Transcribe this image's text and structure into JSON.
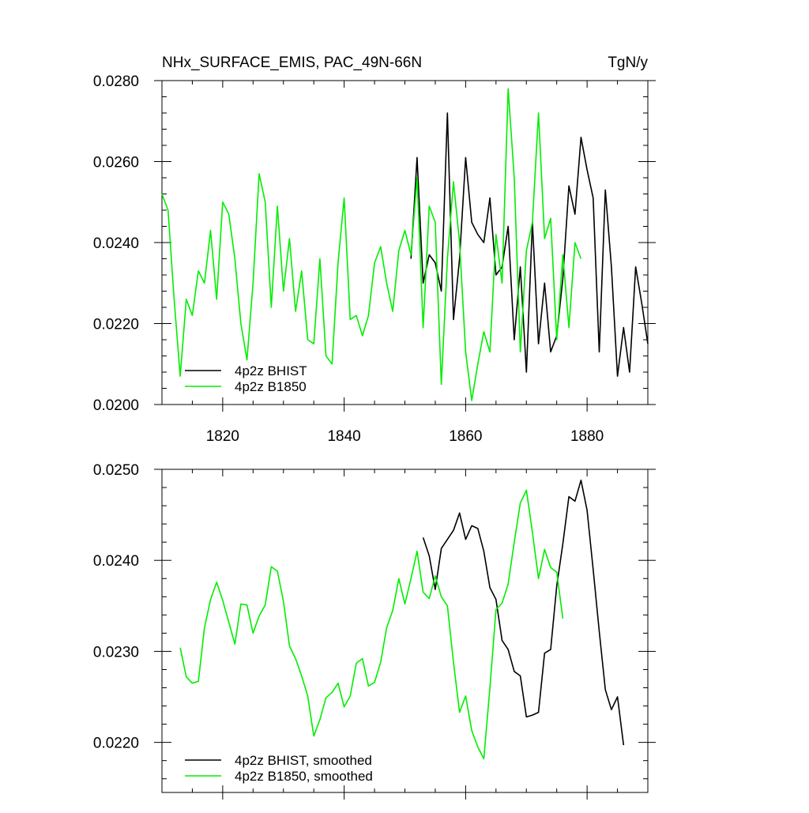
{
  "chart_data": [
    {
      "type": "line",
      "title": "NHx_SURFACE_EMIS, PAC_49N-66N",
      "units": "TgN/y",
      "xlabel": "",
      "ylabel": "",
      "xlim": [
        1810,
        1890
      ],
      "ylim": [
        0.02,
        0.028
      ],
      "yticks": [
        "0.0200",
        "0.0220",
        "0.0240",
        "0.0260",
        "0.0280"
      ],
      "xticks": [
        "1820",
        "1840",
        "1860",
        "1880"
      ],
      "grid": false,
      "legend_position": "bottom-left",
      "series": [
        {
          "name": "4p2z BHIST",
          "color": "#000000",
          "x": [
            1851,
            1852,
            1853,
            1854,
            1855,
            1856,
            1857,
            1858,
            1859,
            1860,
            1861,
            1862,
            1863,
            1864,
            1865,
            1866,
            1867,
            1868,
            1869,
            1870,
            1871,
            1872,
            1873,
            1874,
            1875,
            1876,
            1877,
            1878,
            1879,
            1880,
            1881,
            1882,
            1883,
            1884,
            1885,
            1886,
            1887,
            1888,
            1889,
            1890
          ],
          "y": [
            0.0236,
            0.0261,
            0.023,
            0.0237,
            0.0235,
            0.0228,
            0.0272,
            0.0221,
            0.0236,
            0.0261,
            0.0245,
            0.0242,
            0.024,
            0.0251,
            0.0232,
            0.0234,
            0.0244,
            0.0216,
            0.0234,
            0.0208,
            0.0245,
            0.0215,
            0.023,
            0.0213,
            0.0217,
            0.0231,
            0.0254,
            0.0247,
            0.0266,
            0.0258,
            0.0251,
            0.0213,
            0.0253,
            0.0234,
            0.0207,
            0.0219,
            0.0208,
            0.0234,
            0.0225,
            0.0215
          ]
        },
        {
          "name": "4p2z B1850",
          "color": "#00ee00",
          "x": [
            1810,
            1811,
            1812,
            1813,
            1814,
            1815,
            1816,
            1817,
            1818,
            1819,
            1820,
            1821,
            1822,
            1823,
            1824,
            1825,
            1826,
            1827,
            1828,
            1829,
            1830,
            1831,
            1832,
            1833,
            1834,
            1835,
            1836,
            1837,
            1838,
            1839,
            1840,
            1841,
            1842,
            1843,
            1844,
            1845,
            1846,
            1847,
            1848,
            1849,
            1850,
            1851,
            1852,
            1853,
            1854,
            1855,
            1856,
            1857,
            1858,
            1859,
            1860,
            1861,
            1862,
            1863,
            1864,
            1865,
            1866,
            1867,
            1868,
            1869,
            1870,
            1871,
            1872,
            1873,
            1874,
            1875,
            1876,
            1877,
            1878,
            1879
          ],
          "y": [
            0.0252,
            0.0248,
            0.0226,
            0.0207,
            0.0226,
            0.0222,
            0.0233,
            0.023,
            0.0243,
            0.0226,
            0.025,
            0.0247,
            0.0236,
            0.022,
            0.0211,
            0.023,
            0.0257,
            0.025,
            0.0224,
            0.0249,
            0.0228,
            0.0241,
            0.0223,
            0.0233,
            0.0216,
            0.0215,
            0.0236,
            0.0212,
            0.021,
            0.0235,
            0.0251,
            0.0221,
            0.0222,
            0.0217,
            0.0222,
            0.0235,
            0.0239,
            0.023,
            0.0223,
            0.0238,
            0.0243,
            0.0237,
            0.0256,
            0.0219,
            0.0249,
            0.0245,
            0.0205,
            0.0236,
            0.0255,
            0.024,
            0.0213,
            0.0201,
            0.021,
            0.0218,
            0.0213,
            0.0242,
            0.023,
            0.0278,
            0.0256,
            0.0213,
            0.0238,
            0.0245,
            0.0272,
            0.0241,
            0.0246,
            0.0216,
            0.0237,
            0.0219,
            0.024,
            0.0236
          ]
        }
      ]
    },
    {
      "type": "line",
      "title": "",
      "xlabel": "",
      "ylabel": "",
      "xlim": [
        1810,
        1890
      ],
      "ylim": [
        0.02145,
        0.025
      ],
      "yticks": [
        "0.0220",
        "0.0230",
        "0.0240",
        "0.0250"
      ],
      "grid": false,
      "legend_position": "bottom-left",
      "series": [
        {
          "name": "4p2z BHIST, smoothed",
          "color": "#000000",
          "x": [
            1853,
            1854,
            1855,
            1856,
            1857,
            1858,
            1859,
            1860,
            1861,
            1862,
            1863,
            1864,
            1865,
            1866,
            1867,
            1868,
            1869,
            1870,
            1871,
            1872,
            1873,
            1874,
            1875,
            1876,
            1877,
            1878,
            1879,
            1880,
            1881,
            1882,
            1883,
            1884,
            1885,
            1886,
            1887
          ],
          "y": [
            0.02425,
            0.02405,
            0.02368,
            0.02413,
            0.02423,
            0.02433,
            0.02452,
            0.02423,
            0.02438,
            0.02435,
            0.0241,
            0.0237,
            0.02357,
            0.02312,
            0.02302,
            0.02278,
            0.02273,
            0.02228,
            0.0223,
            0.02233,
            0.02298,
            0.02302,
            0.02372,
            0.02418,
            0.0247,
            0.02465,
            0.02488,
            0.02455,
            0.0239,
            0.02322,
            0.02258,
            0.02236,
            0.0225,
            0.02197,
            null
          ]
        },
        {
          "name": "4p2z B1850, smoothed",
          "color": "#00ee00",
          "x": [
            1813,
            1814,
            1815,
            1816,
            1817,
            1818,
            1819,
            1820,
            1821,
            1822,
            1823,
            1824,
            1825,
            1826,
            1827,
            1828,
            1829,
            1830,
            1831,
            1832,
            1833,
            1834,
            1835,
            1836,
            1837,
            1838,
            1839,
            1840,
            1841,
            1842,
            1843,
            1844,
            1845,
            1846,
            1847,
            1848,
            1849,
            1850,
            1851,
            1852,
            1853,
            1854,
            1855,
            1856,
            1857,
            1858,
            1859,
            1860,
            1861,
            1862,
            1863,
            1864,
            1865,
            1866,
            1867,
            1868,
            1869,
            1870,
            1871,
            1872,
            1873,
            1874,
            1875,
            1876
          ],
          "y": [
            0.02304,
            0.02272,
            0.02265,
            0.02267,
            0.02326,
            0.02357,
            0.02376,
            0.02356,
            0.02332,
            0.02308,
            0.02352,
            0.02351,
            0.0232,
            0.02339,
            0.02351,
            0.02393,
            0.02388,
            0.02355,
            0.02306,
            0.02292,
            0.02273,
            0.02251,
            0.02207,
            0.02225,
            0.02249,
            0.02255,
            0.02265,
            0.02239,
            0.02251,
            0.02287,
            0.02292,
            0.02262,
            0.02266,
            0.02288,
            0.02326,
            0.02345,
            0.0238,
            0.02352,
            0.0238,
            0.0241,
            0.02365,
            0.02358,
            0.02383,
            0.0236,
            0.0235,
            0.02288,
            0.02233,
            0.02251,
            0.02213,
            0.02195,
            0.02182,
            0.0226,
            0.02346,
            0.02353,
            0.02374,
            0.0242,
            0.02463,
            0.02477,
            0.02431,
            0.0238,
            0.02412,
            0.02392,
            0.02387,
            0.02336
          ]
        }
      ]
    }
  ]
}
